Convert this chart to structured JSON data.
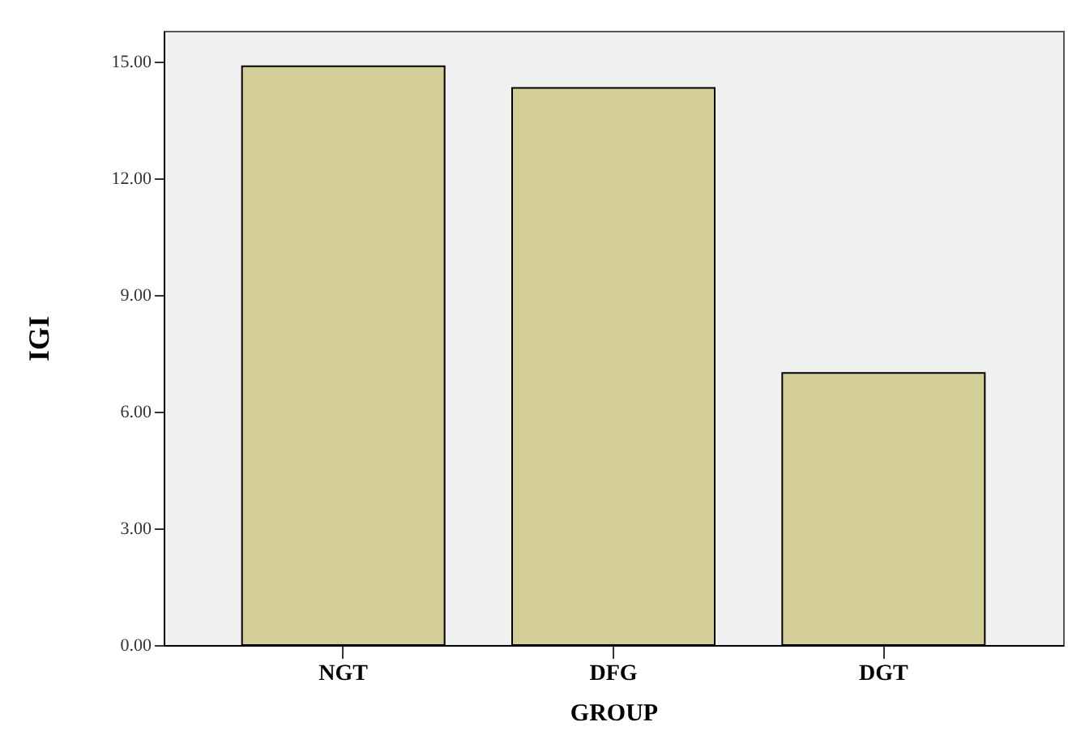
{
  "chart_data": {
    "type": "bar",
    "xlabel": "GROUP",
    "ylabel": "IGI",
    "categories": [
      "NGT",
      "DFG",
      "DGT"
    ],
    "values": [
      14.89,
      14.33,
      7.0
    ],
    "color": "#d3ce98",
    "ylim": [
      0,
      15.8
    ],
    "yticks": [
      {
        "value": 0,
        "label": "0.00"
      },
      {
        "value": 3,
        "label": "3.00"
      },
      {
        "value": 6,
        "label": "6.00"
      },
      {
        "value": 9,
        "label": "9.00"
      },
      {
        "value": 12,
        "label": "12.00"
      },
      {
        "value": 15,
        "label": "15.00"
      }
    ],
    "grid": false
  }
}
